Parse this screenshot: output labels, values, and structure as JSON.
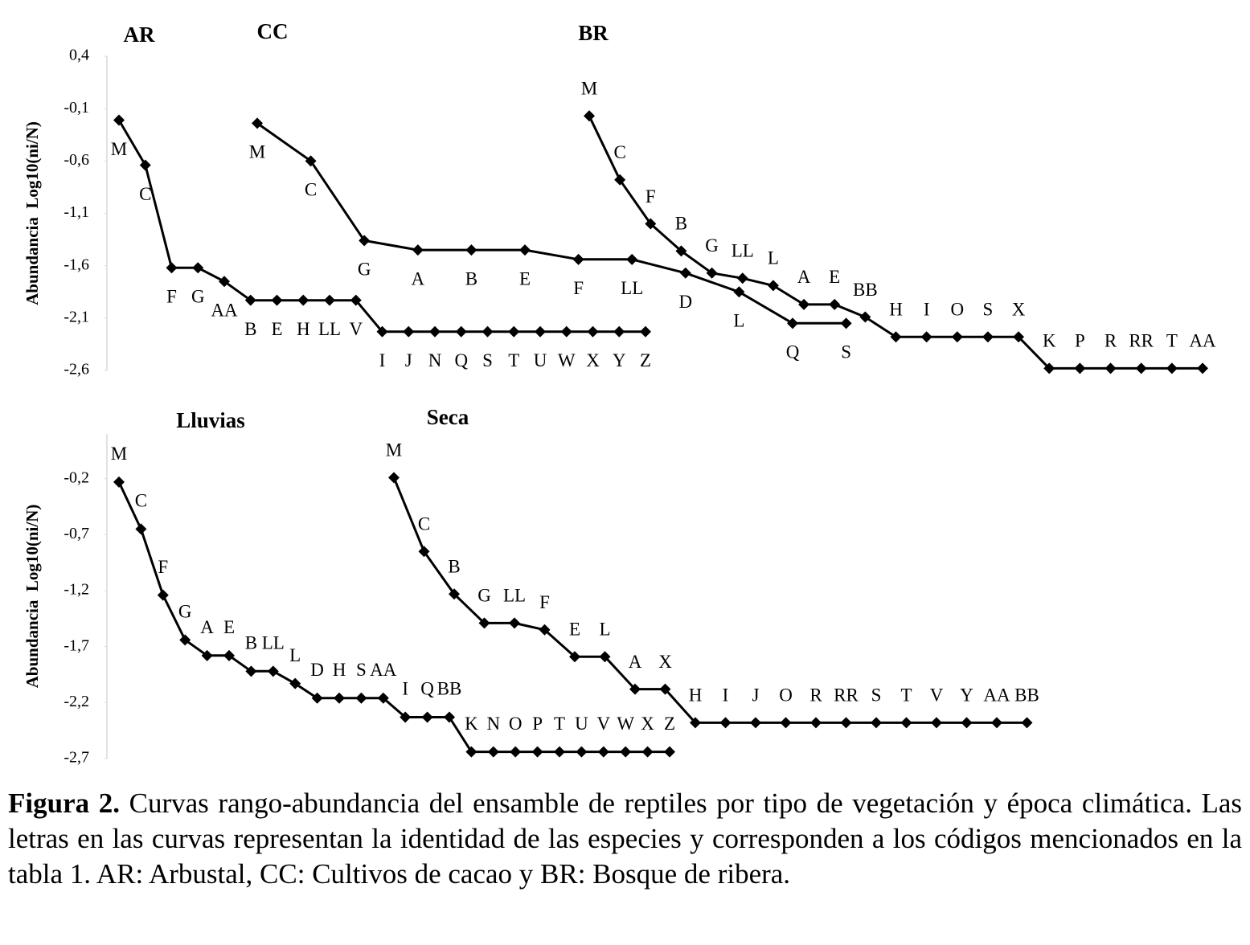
{
  "chart_data": [
    {
      "type": "line",
      "y_label": "Abundancia  Log10(ni/N)",
      "ylim": [
        -2.6,
        0.4
      ],
      "yticks": [
        {
          "value": 0.4,
          "label": "0,4"
        },
        {
          "value": -0.1,
          "label": "-0,1"
        },
        {
          "value": -0.6,
          "label": "-0,6"
        },
        {
          "value": -1.1,
          "label": "-1,1"
        },
        {
          "value": -1.6,
          "label": "-1,6"
        },
        {
          "value": -2.1,
          "label": "-2,1"
        },
        {
          "value": -2.6,
          "label": "-2,6"
        }
      ],
      "color": "#000000",
      "series": [
        {
          "name": "AR",
          "point_labels": [
            "M",
            "C",
            "F",
            "G",
            "AA",
            "B",
            "E",
            "H",
            "LL",
            "V",
            "I",
            "J",
            "N",
            "Q",
            "S",
            "T",
            "U",
            "W",
            "X",
            "Y",
            "Z"
          ],
          "values": [
            -0.21,
            -0.64,
            -1.62,
            -1.62,
            -1.75,
            -1.93,
            -1.93,
            -1.93,
            -1.93,
            -1.93,
            -2.23,
            -2.23,
            -2.23,
            -2.23,
            -2.23,
            -2.23,
            -2.23,
            -2.23,
            -2.23,
            -2.23,
            -2.23
          ]
        },
        {
          "name": "CC",
          "point_labels": [
            "M",
            "C",
            "G",
            "A",
            "B",
            "E",
            "F",
            "LL",
            "D",
            "L",
            "Q",
            "S"
          ],
          "values": [
            -0.24,
            -0.6,
            -1.36,
            -1.45,
            -1.45,
            -1.45,
            -1.54,
            -1.54,
            -1.67,
            -1.85,
            -2.15,
            -2.15
          ]
        },
        {
          "name": "BR",
          "point_labels": [
            "M",
            "C",
            "F",
            "B",
            "G",
            "LL",
            "L",
            "A",
            "E",
            "BB",
            "H",
            "I",
            "O",
            "S",
            "X",
            "K",
            "P",
            "R",
            "RR",
            "T",
            "AA"
          ],
          "values": [
            -0.17,
            -0.78,
            -1.2,
            -1.46,
            -1.67,
            -1.72,
            -1.79,
            -1.97,
            -1.97,
            -2.09,
            -2.28,
            -2.28,
            -2.28,
            -2.28,
            -2.28,
            -2.58,
            -2.58,
            -2.58,
            -2.58,
            -2.58,
            -2.58
          ]
        }
      ]
    },
    {
      "type": "line",
      "y_label": "Abundancia  Log10(ni/N)",
      "ylim": [
        -2.7,
        0.2
      ],
      "yticks": [
        {
          "value": -0.2,
          "label": "-0,2"
        },
        {
          "value": -0.7,
          "label": "-0,7"
        },
        {
          "value": -1.2,
          "label": "-1,2"
        },
        {
          "value": -1.7,
          "label": "-1,7"
        },
        {
          "value": -2.2,
          "label": "-2,2"
        },
        {
          "value": -2.7,
          "label": "-2,7"
        }
      ],
      "color": "#000000",
      "series": [
        {
          "name": "Lluvias",
          "point_labels": [
            "M",
            "C",
            "F",
            "G",
            "A",
            "E",
            "B",
            "LL",
            "L",
            "D",
            "H",
            "S",
            "AA",
            "I",
            "Q",
            "BB",
            "K",
            "N",
            "O",
            "P",
            "T",
            "U",
            "V",
            "W",
            "X",
            "Z"
          ],
          "values": [
            -0.23,
            -0.65,
            -1.24,
            -1.64,
            -1.78,
            -1.78,
            -1.92,
            -1.92,
            -2.03,
            -2.16,
            -2.16,
            -2.16,
            -2.16,
            -2.33,
            -2.33,
            -2.33,
            -2.64,
            -2.64,
            -2.64,
            -2.64,
            -2.64,
            -2.64,
            -2.64,
            -2.64,
            -2.64,
            -2.64
          ]
        },
        {
          "name": "Seca",
          "point_labels": [
            "M",
            "C",
            "B",
            "G",
            "LL",
            "F",
            "E",
            "L",
            "A",
            "X",
            "H",
            "I",
            "J",
            "O",
            "R",
            "RR",
            "S",
            "T",
            "V",
            "Y",
            "AA",
            "BB"
          ],
          "values": [
            -0.19,
            -0.85,
            -1.23,
            -1.49,
            -1.49,
            -1.55,
            -1.79,
            -1.79,
            -2.08,
            -2.08,
            -2.38,
            -2.38,
            -2.38,
            -2.38,
            -2.38,
            -2.38,
            -2.38,
            -2.38,
            -2.38,
            -2.38,
            -2.38,
            -2.38
          ]
        }
      ]
    }
  ],
  "caption": {
    "label": "Figura 2.",
    "text": "Curvas rango-abundancia del ensamble de reptiles por tipo de vegetación y época climática. Las letras en las curvas representan la identidad de las especies y corresponden a los códigos mencionados en la tabla 1. AR: Arbustal, CC: Cultivos de cacao y BR: Bosque de ribera."
  }
}
